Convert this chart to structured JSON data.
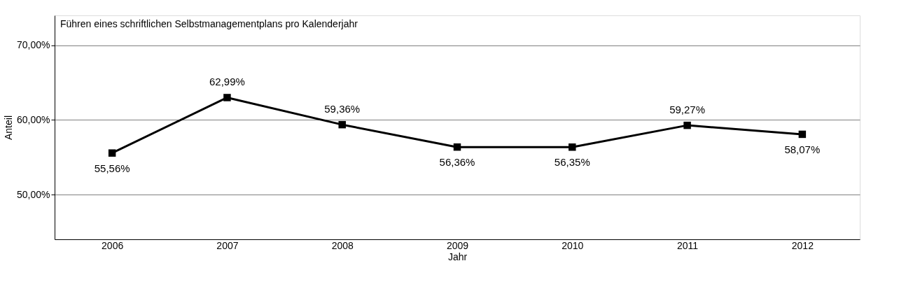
{
  "chart_data": {
    "type": "line",
    "title": "Führen eines schriftlichen Selbstmanagementplans pro Kalenderjahr",
    "xlabel": "Jahr",
    "ylabel": "Anteil",
    "categories": [
      "2006",
      "2007",
      "2008",
      "2009",
      "2010",
      "2011",
      "2012"
    ],
    "series": [
      {
        "color": "#000000",
        "values": [
          55.56,
          62.99,
          59.36,
          56.36,
          56.35,
          59.27,
          58.07
        ],
        "value_labels": [
          "55,56%",
          "62,99%",
          "59,36%",
          "56,36%",
          "56,35%",
          "59,27%",
          "58,07%"
        ]
      }
    ],
    "ylim": [
      44,
      74
    ],
    "yticks": [
      {
        "value": 50,
        "label": "50,00%"
      },
      {
        "value": 60,
        "label": "60,00%"
      },
      {
        "value": 70,
        "label": "70,00%"
      }
    ],
    "grid": "y",
    "marker": "square",
    "line_style": "solid"
  }
}
